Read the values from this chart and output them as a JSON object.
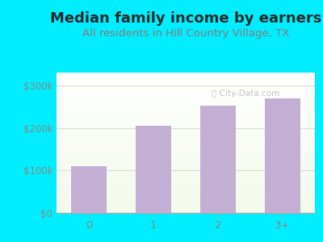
{
  "title": "Median family income by earners",
  "subtitle": "All residents in Hill Country Village, TX",
  "categories": [
    "0",
    "1",
    "2",
    "3+"
  ],
  "values": [
    110000,
    205000,
    253000,
    270000
  ],
  "bar_color": "#c4afd4",
  "title_color": "#2a2a2a",
  "subtitle_color": "#8a7a7a",
  "outer_bg": "#00eeff",
  "plot_bg_top": "#f0f8ee",
  "plot_bg_bottom": "#ffffff",
  "ylim": [
    0,
    330000
  ],
  "yticks": [
    0,
    100000,
    200000,
    300000
  ],
  "ytick_labels": [
    "$0",
    "$100k",
    "$200k",
    "$300k"
  ],
  "title_fontsize": 13,
  "subtitle_fontsize": 9.5,
  "tick_color": "#888880",
  "grid_color": "#ddddcc",
  "bottom_spine_color": "#aaaaaa",
  "watermark": "City-Data.com"
}
